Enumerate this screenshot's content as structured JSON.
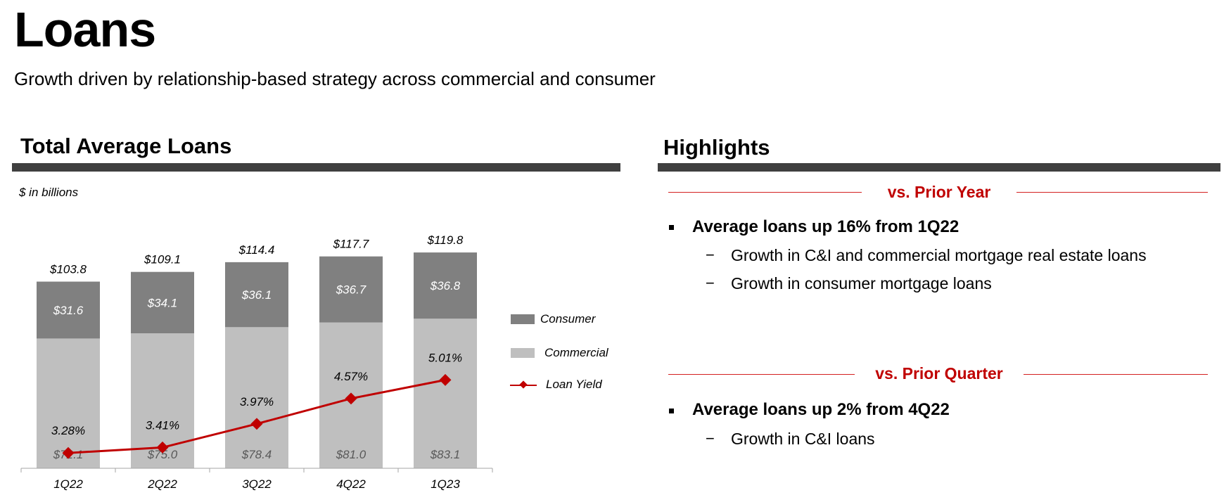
{
  "page": {
    "title": "Loans",
    "subtitle": "Growth driven by relationship-based strategy across commercial and consumer"
  },
  "left_section": {
    "title": "Total Average Loans",
    "units_note": "$ in billions"
  },
  "right_section": {
    "title": "Highlights",
    "groups": [
      {
        "heading": "vs. Prior Year",
        "bullet": "Average loans up 16% from 1Q22",
        "subs": [
          "Growth in C&I and commercial mortgage real estate loans",
          "Growth in consumer mortgage loans"
        ]
      },
      {
        "heading": "vs. Prior Quarter",
        "bullet": "Average loans up 2% from 4Q22",
        "subs": [
          "Growth in C&I loans"
        ]
      }
    ],
    "dash_symbol": "−"
  },
  "legend": {
    "consumer": "Consumer",
    "commercial": "Commercial",
    "loan_yield": "Loan Yield"
  },
  "colors": {
    "consumer": "#808080",
    "commercial": "#bfbfbf",
    "loan_yield": "#c00000",
    "header_bar": "#404040"
  },
  "chart_data": {
    "type": "bar",
    "stacked": true,
    "categories": [
      "1Q22",
      "2Q22",
      "3Q22",
      "4Q22",
      "1Q23"
    ],
    "series": [
      {
        "name": "Commercial",
        "values": [
          72.1,
          75.0,
          78.4,
          81.0,
          83.1
        ],
        "labels": [
          "$72.1",
          "$75.0",
          "$78.4",
          "$81.0",
          "$83.1"
        ]
      },
      {
        "name": "Consumer",
        "values": [
          31.6,
          34.1,
          36.1,
          36.7,
          36.8
        ],
        "labels": [
          "$31.6",
          "$34.1",
          "$36.1",
          "$36.7",
          "$36.8"
        ]
      }
    ],
    "totals": [
      103.8,
      109.1,
      114.4,
      117.7,
      119.8
    ],
    "total_labels": [
      "$103.8",
      "$109.1",
      "$114.4",
      "$117.7",
      "$119.8"
    ],
    "line_series": {
      "name": "Loan Yield",
      "values": [
        3.28,
        3.41,
        3.97,
        4.57,
        5.01
      ],
      "labels": [
        "3.28%",
        "3.41%",
        "3.97%",
        "4.57%",
        "5.01%"
      ]
    },
    "ylim": [
      0,
      130
    ],
    "grid": false,
    "legend_position": "right"
  }
}
